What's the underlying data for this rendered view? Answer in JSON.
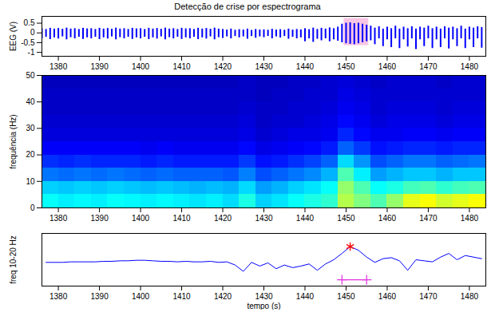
{
  "chart_data": [
    {
      "type": "range",
      "title": "Detecção de crise por espectrograma",
      "ylabel": "EEG (V)",
      "color": "#0000ff",
      "xlim": [
        1376,
        1484
      ],
      "xticks": [
        1380,
        1390,
        1400,
        1410,
        1420,
        1430,
        1440,
        1450,
        1460,
        1470,
        1480
      ],
      "ylim": [
        -1.2,
        0.85
      ],
      "yticks": [
        0.5,
        0,
        -0.5,
        -1
      ],
      "highlight": {
        "x": [
          1449.5,
          1455.5
        ],
        "y": [
          -0.65,
          0.75
        ],
        "color": "#f7c6e4"
      },
      "x": [
        1376,
        1377,
        1378,
        1379,
        1380,
        1381,
        1382,
        1383,
        1384,
        1385,
        1386,
        1387,
        1388,
        1389,
        1390,
        1391,
        1392,
        1393,
        1394,
        1395,
        1396,
        1397,
        1398,
        1399,
        1400,
        1401,
        1402,
        1403,
        1404,
        1405,
        1406,
        1407,
        1408,
        1409,
        1410,
        1411,
        1412,
        1413,
        1414,
        1415,
        1416,
        1417,
        1418,
        1419,
        1420,
        1421,
        1422,
        1423,
        1424,
        1425,
        1426,
        1427,
        1428,
        1429,
        1430,
        1431,
        1432,
        1433,
        1434,
        1435,
        1436,
        1437,
        1438,
        1439,
        1440,
        1441,
        1442,
        1443,
        1444,
        1445,
        1446,
        1447,
        1448,
        1449,
        1450,
        1451,
        1452,
        1453,
        1454,
        1455,
        1456,
        1457,
        1458,
        1459,
        1460,
        1461,
        1462,
        1463,
        1464,
        1465,
        1466,
        1467,
        1468,
        1469,
        1470,
        1471,
        1472,
        1473,
        1474,
        1475,
        1476,
        1477,
        1478,
        1479,
        1480,
        1481,
        1482,
        1483
      ],
      "hi": [
        0.22,
        0.18,
        0.24,
        0.2,
        0.23,
        0.19,
        0.25,
        0.2,
        0.22,
        0.18,
        0.24,
        0.21,
        0.22,
        0.18,
        0.24,
        0.2,
        0.23,
        0.19,
        0.25,
        0.2,
        0.22,
        0.18,
        0.24,
        0.21,
        0.22,
        0.18,
        0.24,
        0.2,
        0.23,
        0.19,
        0.25,
        0.2,
        0.22,
        0.18,
        0.24,
        0.21,
        0.22,
        0.18,
        0.24,
        0.2,
        0.23,
        0.19,
        0.25,
        0.2,
        0.18,
        0.15,
        0.2,
        0.14,
        0.17,
        0.15,
        0.2,
        0.13,
        0.18,
        0.15,
        0.16,
        0.14,
        0.19,
        0.15,
        0.17,
        0.14,
        0.2,
        0.15,
        0.18,
        0.16,
        0.22,
        0.17,
        0.25,
        0.18,
        0.24,
        0.2,
        0.26,
        0.22,
        0.3,
        0.45,
        0.5,
        0.52,
        0.48,
        0.5,
        0.45,
        0.4,
        0.35,
        0.25,
        0.32,
        0.2,
        0.3,
        0.22,
        0.35,
        0.2,
        0.3,
        0.22,
        0.32,
        0.2,
        0.3,
        0.25,
        0.35,
        0.22,
        0.3,
        0.2,
        0.32,
        0.25,
        0.3,
        0.22,
        0.35,
        0.2,
        0.3,
        0.25,
        0.32,
        0.28
      ],
      "lo": [
        -0.3,
        -0.22,
        -0.34,
        -0.25,
        -0.31,
        -0.2,
        -0.35,
        -0.24,
        -0.3,
        -0.22,
        -0.33,
        -0.25,
        -0.3,
        -0.22,
        -0.34,
        -0.25,
        -0.31,
        -0.2,
        -0.35,
        -0.24,
        -0.3,
        -0.22,
        -0.33,
        -0.25,
        -0.3,
        -0.22,
        -0.34,
        -0.25,
        -0.31,
        -0.2,
        -0.35,
        -0.24,
        -0.3,
        -0.22,
        -0.33,
        -0.25,
        -0.3,
        -0.22,
        -0.34,
        -0.25,
        -0.31,
        -0.2,
        -0.35,
        -0.24,
        -0.28,
        -0.2,
        -0.3,
        -0.18,
        -0.25,
        -0.2,
        -0.32,
        -0.18,
        -0.27,
        -0.2,
        -0.24,
        -0.18,
        -0.3,
        -0.2,
        -0.26,
        -0.18,
        -0.32,
        -0.22,
        -0.3,
        -0.25,
        -0.45,
        -0.3,
        -0.48,
        -0.32,
        -0.4,
        -0.3,
        -0.45,
        -0.35,
        -0.42,
        -0.5,
        -0.55,
        -0.58,
        -0.6,
        -0.55,
        -0.5,
        -0.45,
        -0.4,
        -0.6,
        -0.3,
        -0.7,
        -0.35,
        -0.75,
        -0.3,
        -0.8,
        -0.35,
        -0.72,
        -0.3,
        -0.85,
        -0.35,
        -0.7,
        -0.3,
        -0.8,
        -0.35,
        -0.75,
        -0.3,
        -0.82,
        -0.35,
        -0.7,
        -0.3,
        -0.8,
        -0.35,
        -0.75,
        -0.3,
        -0.78
      ]
    },
    {
      "type": "heatmap",
      "ylabel": "frequência (Hz)",
      "xlim": [
        1376,
        1484
      ],
      "xticks": [
        1380,
        1390,
        1400,
        1410,
        1420,
        1430,
        1440,
        1450,
        1460,
        1470,
        1480
      ],
      "ylim": [
        0,
        50
      ],
      "yticks": [
        0,
        10,
        20,
        30,
        40,
        50
      ],
      "clim": [
        0,
        1
      ],
      "time_edges": [
        1376,
        1380,
        1384,
        1388,
        1392,
        1396,
        1400,
        1404,
        1408,
        1412,
        1416,
        1420,
        1424,
        1428,
        1432,
        1436,
        1440,
        1444,
        1448,
        1452,
        1456,
        1460,
        1464,
        1468,
        1472,
        1476,
        1480,
        1484
      ],
      "freq_edges": [
        0,
        5,
        10,
        15,
        20,
        25,
        30,
        35,
        40,
        45,
        50
      ],
      "power": [
        [
          0.38,
          0.36,
          0.37,
          0.36,
          0.38,
          0.37,
          0.36,
          0.37,
          0.36,
          0.35,
          0.36,
          0.34,
          0.4,
          0.33,
          0.35,
          0.38,
          0.4,
          0.42,
          0.55,
          0.5,
          0.45,
          0.52,
          0.6,
          0.62,
          0.58,
          0.6,
          0.62
        ],
        [
          0.33,
          0.32,
          0.33,
          0.32,
          0.33,
          0.32,
          0.31,
          0.32,
          0.31,
          0.3,
          0.31,
          0.3,
          0.34,
          0.28,
          0.3,
          0.33,
          0.35,
          0.38,
          0.52,
          0.45,
          0.38,
          0.4,
          0.44,
          0.45,
          0.42,
          0.44,
          0.45
        ],
        [
          0.24,
          0.23,
          0.24,
          0.23,
          0.24,
          0.23,
          0.22,
          0.23,
          0.22,
          0.22,
          0.22,
          0.21,
          0.25,
          0.2,
          0.22,
          0.24,
          0.26,
          0.3,
          0.45,
          0.36,
          0.28,
          0.3,
          0.32,
          0.32,
          0.3,
          0.32,
          0.32
        ],
        [
          0.17,
          0.16,
          0.17,
          0.16,
          0.16,
          0.16,
          0.15,
          0.16,
          0.15,
          0.15,
          0.15,
          0.15,
          0.18,
          0.14,
          0.15,
          0.17,
          0.19,
          0.22,
          0.34,
          0.27,
          0.2,
          0.22,
          0.24,
          0.24,
          0.22,
          0.23,
          0.24
        ],
        [
          0.12,
          0.12,
          0.12,
          0.12,
          0.12,
          0.12,
          0.11,
          0.12,
          0.11,
          0.11,
          0.11,
          0.11,
          0.13,
          0.1,
          0.11,
          0.12,
          0.13,
          0.15,
          0.22,
          0.18,
          0.14,
          0.15,
          0.16,
          0.16,
          0.15,
          0.16,
          0.16
        ],
        [
          0.09,
          0.09,
          0.09,
          0.09,
          0.09,
          0.09,
          0.09,
          0.09,
          0.09,
          0.09,
          0.09,
          0.09,
          0.1,
          0.08,
          0.09,
          0.1,
          0.1,
          0.11,
          0.16,
          0.13,
          0.11,
          0.11,
          0.12,
          0.12,
          0.11,
          0.12,
          0.12
        ],
        [
          0.08,
          0.08,
          0.08,
          0.08,
          0.08,
          0.08,
          0.08,
          0.08,
          0.08,
          0.08,
          0.08,
          0.08,
          0.09,
          0.07,
          0.08,
          0.08,
          0.09,
          0.1,
          0.13,
          0.11,
          0.09,
          0.1,
          0.1,
          0.1,
          0.09,
          0.1,
          0.1
        ],
        [
          0.07,
          0.07,
          0.07,
          0.07,
          0.07,
          0.07,
          0.07,
          0.07,
          0.07,
          0.07,
          0.07,
          0.07,
          0.08,
          0.07,
          0.07,
          0.08,
          0.08,
          0.09,
          0.11,
          0.1,
          0.08,
          0.09,
          0.09,
          0.09,
          0.08,
          0.09,
          0.09
        ],
        [
          0.07,
          0.07,
          0.07,
          0.07,
          0.07,
          0.07,
          0.07,
          0.07,
          0.07,
          0.07,
          0.07,
          0.07,
          0.07,
          0.06,
          0.07,
          0.07,
          0.08,
          0.08,
          0.1,
          0.09,
          0.08,
          0.08,
          0.08,
          0.08,
          0.08,
          0.08,
          0.08
        ],
        [
          0.06,
          0.06,
          0.06,
          0.06,
          0.06,
          0.06,
          0.06,
          0.06,
          0.06,
          0.06,
          0.06,
          0.06,
          0.07,
          0.06,
          0.06,
          0.07,
          0.07,
          0.08,
          0.09,
          0.08,
          0.07,
          0.08,
          0.08,
          0.08,
          0.07,
          0.08,
          0.08
        ]
      ]
    },
    {
      "type": "line",
      "ylabel": "freq 10-20 Hz",
      "xlabel": "tempo (s)",
      "tick_labels": "x",
      "color": "#0000ff",
      "xlim": [
        1376,
        1484
      ],
      "xticks": [
        1380,
        1390,
        1400,
        1410,
        1420,
        1430,
        1440,
        1450,
        1460,
        1470,
        1480
      ],
      "ylim": [
        0,
        1
      ],
      "x": [
        1377,
        1379,
        1381,
        1383,
        1385,
        1387,
        1389,
        1391,
        1393,
        1395,
        1397,
        1399,
        1401,
        1403,
        1405,
        1407,
        1409,
        1411,
        1413,
        1415,
        1417,
        1419,
        1421,
        1423,
        1425,
        1427,
        1429,
        1431,
        1433,
        1435,
        1437,
        1439,
        1441,
        1443,
        1445,
        1447,
        1449,
        1451,
        1453,
        1455,
        1457,
        1459,
        1461,
        1463,
        1465,
        1467,
        1469,
        1471,
        1473,
        1475,
        1477,
        1479,
        1481,
        1483
      ],
      "values": [
        0.45,
        0.45,
        0.45,
        0.46,
        0.46,
        0.46,
        0.46,
        0.47,
        0.47,
        0.48,
        0.48,
        0.49,
        0.49,
        0.48,
        0.47,
        0.47,
        0.46,
        0.47,
        0.46,
        0.46,
        0.47,
        0.45,
        0.46,
        0.4,
        0.28,
        0.45,
        0.38,
        0.44,
        0.33,
        0.4,
        0.35,
        0.38,
        0.42,
        0.3,
        0.42,
        0.5,
        0.62,
        0.75,
        0.68,
        0.55,
        0.45,
        0.52,
        0.54,
        0.48,
        0.3,
        0.5,
        0.48,
        0.46,
        0.55,
        0.62,
        0.5,
        0.58,
        0.55,
        0.52
      ],
      "peak": {
        "x": 1451,
        "y": 0.75,
        "marker": "asterisk",
        "color": "#ff0000"
      },
      "interval": {
        "x": [
          1449,
          1455
        ],
        "y": 0.12,
        "marker": "plus",
        "color": "#e030e0"
      }
    }
  ]
}
